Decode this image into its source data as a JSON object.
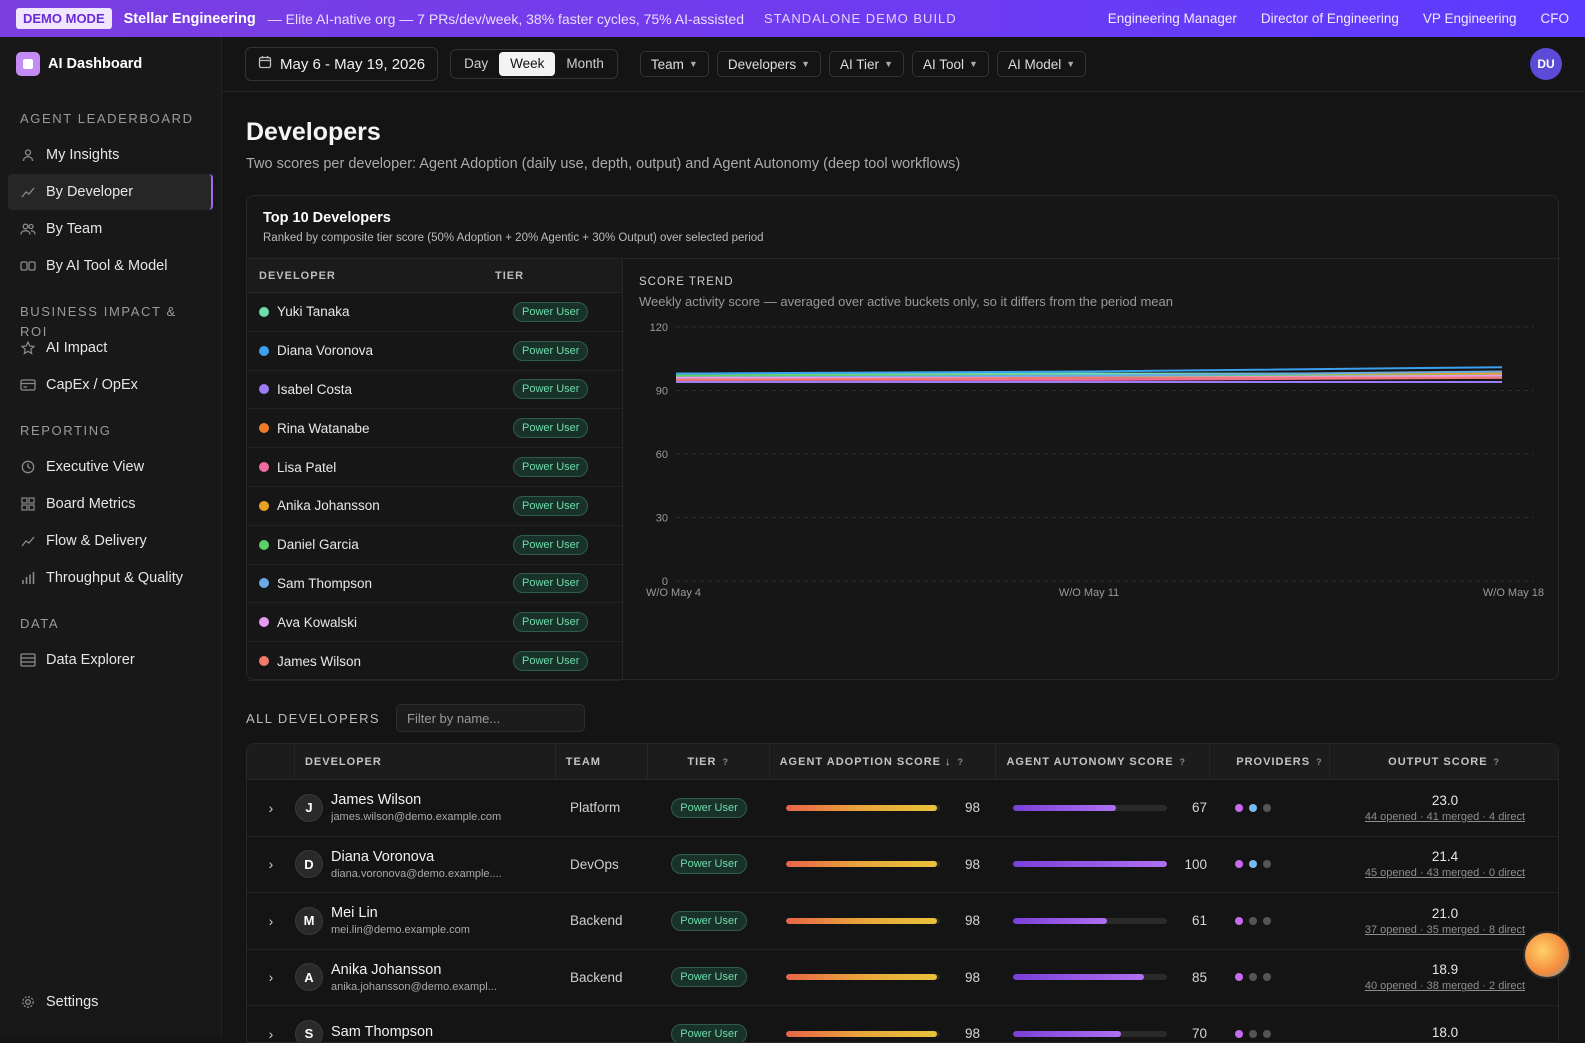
{
  "topbar": {
    "demo": "DEMO MODE",
    "org": "Stellar Engineering",
    "tagline": "— Elite AI-native org — 7 PRs/dev/week, 38% faster cycles, 75% AI-assisted",
    "build": "STANDALONE DEMO BUILD",
    "roles": [
      "Engineering Manager",
      "Director of Engineering",
      "VP Engineering",
      "CFO"
    ]
  },
  "sidebar": {
    "brand": "AI Dashboard",
    "sections": [
      {
        "title": "AGENT LEADERBOARD",
        "items": [
          {
            "label": "My Insights",
            "icon": "user-icon"
          },
          {
            "label": "By Developer",
            "icon": "trend-icon",
            "active": true
          },
          {
            "label": "By Team",
            "icon": "users-icon"
          },
          {
            "label": "By AI Tool & Model",
            "icon": "toggle-icon"
          }
        ]
      },
      {
        "title": "BUSINESS IMPACT & ROI",
        "items": [
          {
            "label": "AI Impact",
            "icon": "star-icon"
          },
          {
            "label": "CapEx / OpEx",
            "icon": "card-icon"
          }
        ]
      },
      {
        "title": "REPORTING",
        "items": [
          {
            "label": "Executive View",
            "icon": "clock-icon"
          },
          {
            "label": "Board Metrics",
            "icon": "grid-icon"
          },
          {
            "label": "Flow & Delivery",
            "icon": "trend-icon"
          },
          {
            "label": "Throughput & Quality",
            "icon": "bars-icon"
          }
        ]
      },
      {
        "title": "DATA",
        "items": [
          {
            "label": "Data Explorer",
            "icon": "database-icon"
          }
        ]
      }
    ],
    "settings": "Settings"
  },
  "filters": {
    "date": "May 6 - May 19, 2026",
    "periods": [
      "Day",
      "Week",
      "Month"
    ],
    "active_period": "Week",
    "dropdowns": [
      "Team",
      "Developers",
      "AI Tier",
      "AI Tool",
      "AI Model"
    ],
    "avatar": "DU"
  },
  "page": {
    "title": "Developers",
    "subtitle": "Two scores per developer: Agent Adoption (daily use, depth, output) and Agent Autonomy (deep tool workflows)"
  },
  "top10": {
    "title": "Top 10 Developers",
    "subtitle": "Ranked by composite tier score (50% Adoption + 20% Agentic + 30% Output) over selected period",
    "col_dev": "DEVELOPER",
    "col_tier": "TIER",
    "rows": [
      {
        "name": "Yuki Tanaka",
        "tier": "Power User",
        "color": "#6fdcab"
      },
      {
        "name": "Diana Voronova",
        "tier": "Power User",
        "color": "#3aa0f0"
      },
      {
        "name": "Isabel Costa",
        "tier": "Power User",
        "color": "#9b7cf5"
      },
      {
        "name": "Rina Watanabe",
        "tier": "Power User",
        "color": "#f07a2a"
      },
      {
        "name": "Lisa Patel",
        "tier": "Power User",
        "color": "#f06aa0"
      },
      {
        "name": "Anika Johansson",
        "tier": "Power User",
        "color": "#e8a020"
      },
      {
        "name": "Daniel Garcia",
        "tier": "Power User",
        "color": "#5ad06a"
      },
      {
        "name": "Sam Thompson",
        "tier": "Power User",
        "color": "#6aa8e8"
      },
      {
        "name": "Ava Kowalski",
        "tier": "Power User",
        "color": "#e89af0"
      },
      {
        "name": "James Wilson",
        "tier": "Power User",
        "color": "#f07a6a"
      }
    ]
  },
  "trend": {
    "title": "SCORE TREND",
    "subtitle": "Weekly activity score — averaged over active buckets only, so it differs from the period mean"
  },
  "chart_data": {
    "type": "line",
    "title": "SCORE TREND",
    "x": [
      "W/O May 4",
      "W/O May 11",
      "W/O May 18"
    ],
    "ylim": [
      0,
      120
    ],
    "yticks": [
      0,
      30,
      60,
      90,
      120
    ],
    "grid": true,
    "series": [
      {
        "color": "#6fdcab",
        "values": [
          98,
          98,
          98
        ]
      },
      {
        "color": "#3aa0f0",
        "values": [
          98,
          99,
          101
        ]
      },
      {
        "color": "#9b7cf5",
        "values": [
          94,
          94,
          94
        ]
      },
      {
        "color": "#f07a2a",
        "values": [
          96,
          96,
          97
        ]
      },
      {
        "color": "#f06aa0",
        "values": [
          95,
          95,
          96
        ]
      },
      {
        "color": "#e8a020",
        "values": [
          97,
          97,
          98
        ]
      },
      {
        "color": "#5ad06a",
        "values": [
          97,
          97,
          97
        ]
      },
      {
        "color": "#6aa8e8",
        "values": [
          96,
          97,
          99
        ]
      },
      {
        "color": "#e89af0",
        "values": [
          96,
          96,
          97
        ]
      },
      {
        "color": "#f07a6a",
        "values": [
          95,
          96,
          96
        ]
      }
    ]
  },
  "all": {
    "label": "ALL DEVELOPERS",
    "filter_placeholder": "Filter by name...",
    "headers": {
      "developer": "DEVELOPER",
      "team": "TEAM",
      "tier": "TIER",
      "adoption": "AGENT ADOPTION SCORE ↓",
      "autonomy": "AGENT AUTONOMY SCORE",
      "providers": "PROVIDERS",
      "output": "OUTPUT SCORE"
    },
    "rows": [
      {
        "initial": "J",
        "name": "James Wilson",
        "email": "james.wilson@demo.example.com",
        "team": "Platform",
        "tier": "Power User",
        "adoption": 98,
        "autonomy": 67,
        "providers": [
          "#c86af0",
          "#7ab8f0",
          "#555"
        ],
        "output": "23.0",
        "detail": "44 opened · 41 merged · 4 direct"
      },
      {
        "initial": "D",
        "name": "Diana Voronova",
        "email": "diana.voronova@demo.example....",
        "team": "DevOps",
        "tier": "Power User",
        "adoption": 98,
        "autonomy": 100,
        "providers": [
          "#c86af0",
          "#7ab8f0",
          "#555"
        ],
        "output": "21.4",
        "detail": "45 opened · 43 merged · 0 direct"
      },
      {
        "initial": "M",
        "name": "Mei Lin",
        "email": "mei.lin@demo.example.com",
        "team": "Backend",
        "tier": "Power User",
        "adoption": 98,
        "autonomy": 61,
        "providers": [
          "#c86af0",
          "#555",
          "#555"
        ],
        "output": "21.0",
        "detail": "37 opened · 35 merged · 8 direct"
      },
      {
        "initial": "A",
        "name": "Anika Johansson",
        "email": "anika.johansson@demo.exampl...",
        "team": "Backend",
        "tier": "Power User",
        "adoption": 98,
        "autonomy": 85,
        "providers": [
          "#c86af0",
          "#555",
          "#555"
        ],
        "output": "18.9",
        "detail": "40 opened · 38 merged · 2 direct"
      },
      {
        "initial": "S",
        "name": "Sam Thompson",
        "email": "",
        "team": "",
        "tier": "Power User",
        "adoption": 98,
        "autonomy": 70,
        "providers": [
          "#c86af0",
          "#555",
          "#555"
        ],
        "output": "18.0",
        "detail": ""
      }
    ]
  }
}
